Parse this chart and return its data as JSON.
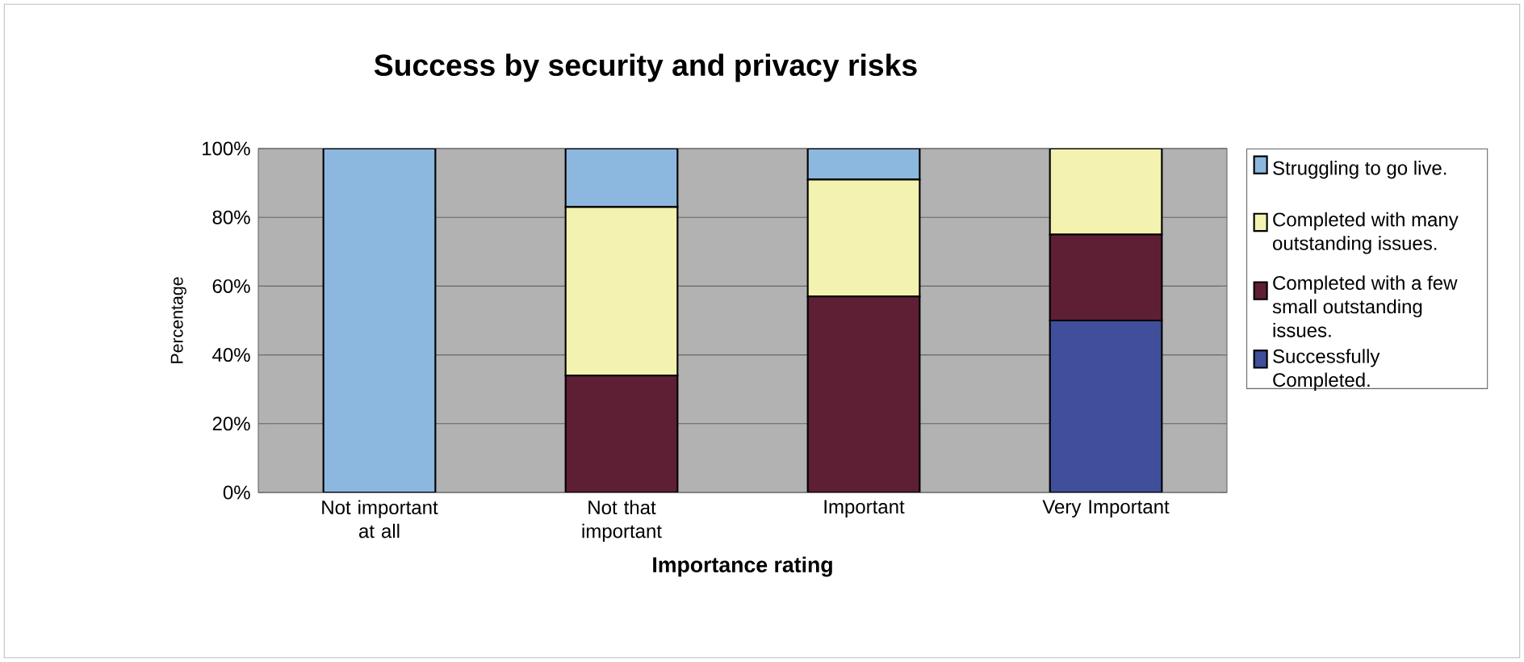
{
  "chart_data": {
    "type": "bar",
    "stacked": true,
    "title": "Success by security and privacy risks",
    "xlabel": "Importance rating",
    "ylabel": "Percentage",
    "categories": [
      "Not important at all",
      "Not that important",
      "Important",
      "Very Important"
    ],
    "series": [
      {
        "name": "Successfully Completed.",
        "color": "#3f4f9a",
        "values": [
          0,
          0,
          0,
          50
        ]
      },
      {
        "name": "Completed with a few small outstanding issues.",
        "color": "#5e1f35",
        "values": [
          0,
          34,
          57,
          25
        ]
      },
      {
        "name": "Completed with many outstanding issues.",
        "color": "#f3f2b0",
        "values": [
          0,
          49,
          34,
          25
        ]
      },
      {
        "name": "Struggling to go live.",
        "color": "#8cb8e0",
        "values": [
          100,
          17,
          9,
          0
        ]
      }
    ],
    "ylim": [
      0,
      100
    ],
    "yticks": [
      {
        "value": 0,
        "label": "0%"
      },
      {
        "value": 20,
        "label": "20%"
      },
      {
        "value": 40,
        "label": "40%"
      },
      {
        "value": 60,
        "label": "60%"
      },
      {
        "value": 80,
        "label": "80%"
      },
      {
        "value": 100,
        "label": "100%"
      }
    ],
    "grid": "y",
    "legend": "right"
  }
}
